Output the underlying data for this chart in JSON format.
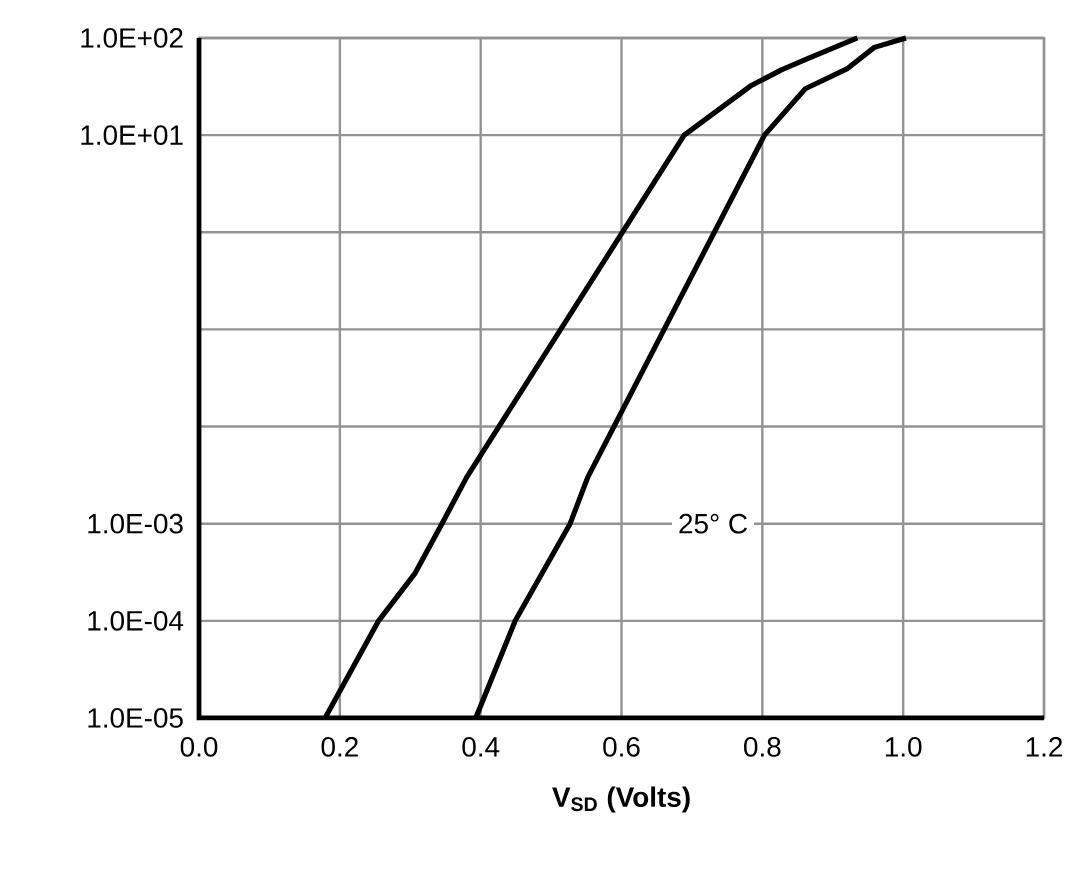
{
  "chart_data": {
    "type": "line",
    "xlabel": "V$_{SD}$ (Volts)",
    "log": "y",
    "grid": true,
    "marker": "none",
    "line_style": "solid",
    "xlim": [
      0,
      1.2
    ],
    "ylim": [
      1e-05,
      100
    ],
    "xticks": [
      {
        "value": 0,
        "label": "0.0"
      },
      {
        "value": 0.2,
        "label": "0.2"
      },
      {
        "value": 0.4,
        "label": "0.4"
      },
      {
        "value": 0.6,
        "label": "0.6"
      },
      {
        "value": 0.8,
        "label": "0.8"
      },
      {
        "value": 1.0,
        "label": "1.0"
      },
      {
        "value": 1.2,
        "label": "1.2"
      }
    ],
    "yticks": [
      {
        "value": 100,
        "label": "1.0E+02"
      },
      {
        "value": 10,
        "label": "1.0E+01"
      },
      {
        "value": 1,
        "label": null
      },
      {
        "value": 0.1,
        "label": null
      },
      {
        "value": 0.01,
        "label": null
      },
      {
        "value": 0.001,
        "label": "1.0E-03"
      },
      {
        "value": 0.0001,
        "label": "1.0E-04"
      },
      {
        "value": 1e-05,
        "label": "1.0E-05"
      }
    ],
    "series": [
      {
        "color": "#000000",
        "x": [
          0.179,
          0.255,
          0.307,
          0.345,
          0.38,
          0.689,
          0.783,
          0.827,
          0.866,
          0.935
        ],
        "values": [
          1e-05,
          0.0001,
          0.00031,
          0.001,
          0.003,
          10,
          32,
          47,
          62,
          100
        ]
      },
      {
        "color": "#000000",
        "x": [
          0.393,
          0.449,
          0.527,
          0.552,
          0.803,
          0.861,
          0.92,
          0.959,
          1.004
        ],
        "values": [
          1e-05,
          0.0001,
          0.001,
          0.003,
          10,
          30,
          48,
          80,
          100
        ]
      }
    ],
    "annotations": [
      {
        "text": "25° C",
        "x": 0.73,
        "y": 0.001
      }
    ]
  }
}
